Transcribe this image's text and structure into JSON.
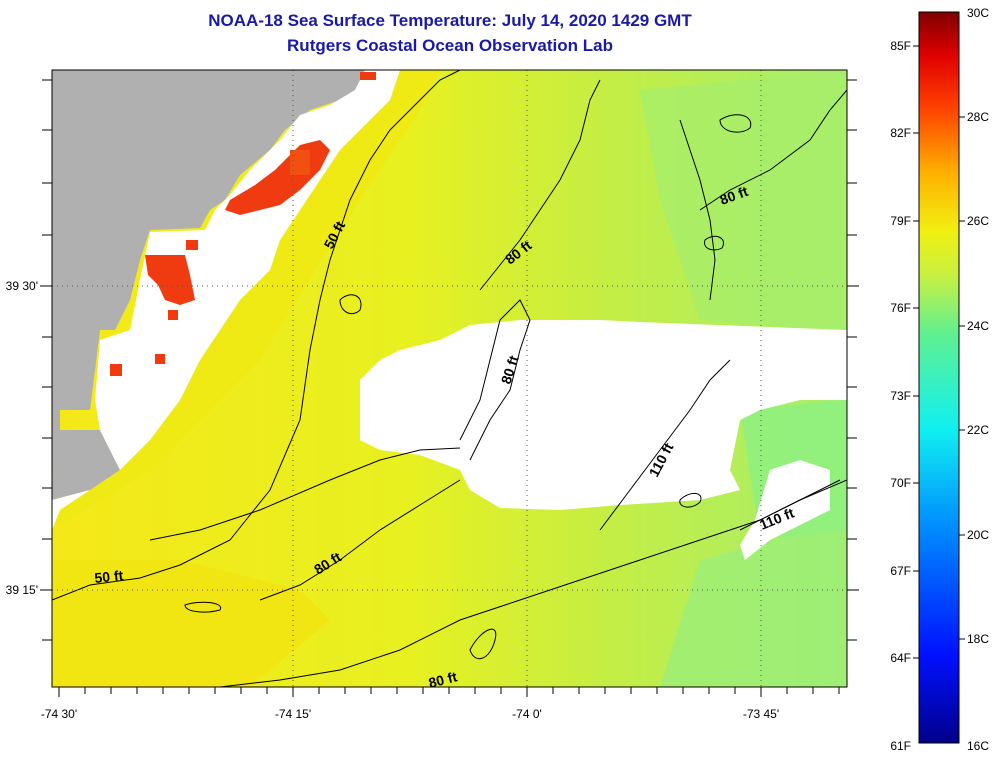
{
  "title": "NOAA-18 Sea Surface Temperature:  July 14, 2020 1429 GMT",
  "subtitle": "Rutgers Coastal Ocean Observation Lab",
  "map": {
    "lon_ticks": [
      "-74 30'",
      "-74 15'",
      "-74 0'",
      "-73 45'"
    ],
    "lat_ticks": [
      "39 30'",
      "39 15'"
    ],
    "contour_labels": [
      "50 ft",
      "50 ft",
      "80 ft",
      "80 ft",
      "80 ft",
      "80 ft",
      "80 ft",
      "110 ft",
      "110 ft"
    ],
    "colors": {
      "land": "#b0b0b0",
      "cloud": "#ffffff",
      "water_warm": "#f2ea18",
      "water_mid": "#c8f040",
      "water_cool": "#9ef07c",
      "hot_spot": "#f03a10"
    }
  },
  "colorbar": {
    "fahrenheit_labels": [
      "85F",
      "82F",
      "79F",
      "76F",
      "73F",
      "70F",
      "67F",
      "64F",
      "61F"
    ],
    "celsius_labels": [
      "30C",
      "28C",
      "26C",
      "24C",
      "22C",
      "20C",
      "18C",
      "16C"
    ],
    "range_c": [
      16,
      30
    ]
  }
}
